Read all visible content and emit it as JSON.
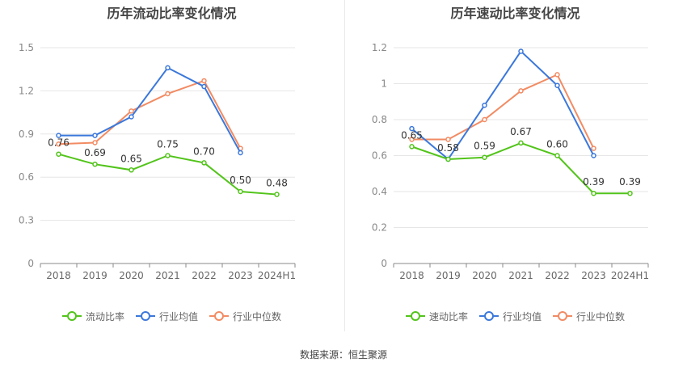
{
  "source_label": "数据来源：恒生聚源",
  "chart_data": [
    {
      "type": "line",
      "title": "历年流动比率变化情况",
      "categories": [
        "2018",
        "2019",
        "2020",
        "2021",
        "2022",
        "2023",
        "2024H1"
      ],
      "ylim": [
        0,
        1.5
      ],
      "yticks": [
        0,
        0.3,
        0.6,
        0.9,
        1.2,
        1.5
      ],
      "ytick_labels": [
        "0",
        "0.3",
        "0.6",
        "0.9",
        "1.2",
        "1.5"
      ],
      "grid": true,
      "legend_position": "bottom",
      "series": [
        {
          "name": "流动比率",
          "color": "#52c41a",
          "values": [
            0.76,
            0.69,
            0.65,
            0.75,
            0.7,
            0.5,
            0.48
          ],
          "labels": [
            "0.76",
            "0.69",
            "0.65",
            "0.75",
            "0.70",
            "0.50",
            "0.48"
          ]
        },
        {
          "name": "行业均值",
          "color": "#3b78db",
          "values": [
            0.89,
            0.89,
            1.02,
            1.36,
            1.23,
            0.77,
            null
          ]
        },
        {
          "name": "行业中位数",
          "color": "#f28b63",
          "values": [
            0.83,
            0.84,
            1.06,
            1.18,
            1.27,
            0.8,
            null
          ]
        }
      ]
    },
    {
      "type": "line",
      "title": "历年速动比率变化情况",
      "categories": [
        "2018",
        "2019",
        "2020",
        "2021",
        "2022",
        "2023",
        "2024H1"
      ],
      "ylim": [
        0,
        1.2
      ],
      "yticks": [
        0,
        0.2,
        0.4,
        0.6,
        0.8,
        1.0,
        1.2
      ],
      "ytick_labels": [
        "0",
        "0.2",
        "0.4",
        "0.6",
        "0.8",
        "1",
        "1.2"
      ],
      "grid": true,
      "legend_position": "bottom",
      "series": [
        {
          "name": "速动比率",
          "color": "#52c41a",
          "values": [
            0.65,
            0.58,
            0.59,
            0.67,
            0.6,
            0.39,
            0.39
          ],
          "labels": [
            "0.65",
            "0.58",
            "0.59",
            "0.67",
            "0.60",
            "0.39",
            "0.39"
          ]
        },
        {
          "name": "行业均值",
          "color": "#3b78db",
          "values": [
            0.75,
            0.58,
            0.88,
            1.18,
            0.99,
            0.6,
            null
          ]
        },
        {
          "name": "行业中位数",
          "color": "#f28b63",
          "values": [
            0.69,
            0.69,
            0.8,
            0.96,
            1.05,
            0.64,
            null
          ]
        }
      ]
    }
  ]
}
